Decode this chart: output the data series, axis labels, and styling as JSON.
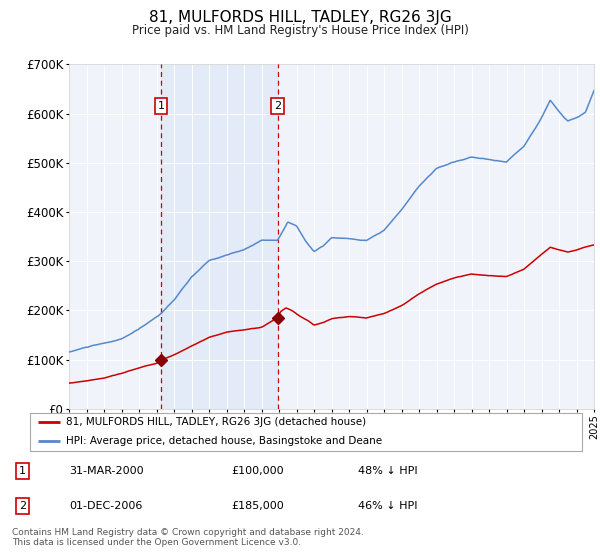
{
  "title": "81, MULFORDS HILL, TADLEY, RG26 3JG",
  "subtitle": "Price paid vs. HM Land Registry's House Price Index (HPI)",
  "background_color": "#ffffff",
  "plot_bg_color": "#f0f4fa",
  "hpi_line_color": "#5588cc",
  "price_line_color": "#cc0000",
  "marker_color": "#880000",
  "shade_color": "#ccddf5",
  "shade_alpha": 0.35,
  "dashed_color": "#cc0000",
  "x_start_year": 1995,
  "x_end_year": 2025,
  "y_min": 0,
  "y_max": 700000,
  "y_ticks": [
    0,
    100000,
    200000,
    300000,
    400000,
    500000,
    600000,
    700000
  ],
  "y_tick_labels": [
    "£0",
    "£100K",
    "£200K",
    "£300K",
    "£400K",
    "£500K",
    "£600K",
    "£700K"
  ],
  "sale1_year": 2000.25,
  "sale1_price": 100000,
  "sale2_year": 2006.917,
  "sale2_price": 185000,
  "legend_entries": [
    "81, MULFORDS HILL, TADLEY, RG26 3JG (detached house)",
    "HPI: Average price, detached house, Basingstoke and Deane"
  ],
  "table_rows": [
    {
      "num": "1",
      "date": "31-MAR-2000",
      "price": "£100,000",
      "hpi": "48% ↓ HPI"
    },
    {
      "num": "2",
      "date": "01-DEC-2006",
      "price": "£185,000",
      "hpi": "46% ↓ HPI"
    }
  ],
  "footer": "Contains HM Land Registry data © Crown copyright and database right 2024.\nThis data is licensed under the Open Government Licence v3.0."
}
